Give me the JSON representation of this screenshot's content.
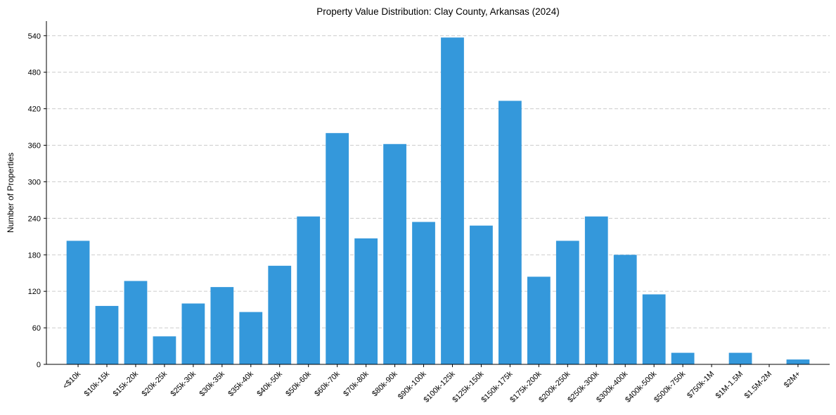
{
  "chart_data": {
    "type": "bar",
    "title": "Property Value Distribution: Clay County, Arkansas (2024)",
    "xlabel": "",
    "ylabel": "Number of Properties",
    "categories": [
      "<$10k",
      "$10k-15k",
      "$15k-20k",
      "$20k-25k",
      "$25k-30k",
      "$30k-35k",
      "$35k-40k",
      "$40k-50k",
      "$50k-60k",
      "$60k-70k",
      "$70k-80k",
      "$80k-90k",
      "$90k-100k",
      "$100k-125k",
      "$125k-150k",
      "$150k-175k",
      "$175k-200k",
      "$200k-250k",
      "$250k-300k",
      "$300k-400k",
      "$400k-500k",
      "$500k-750k",
      "$750k-1M",
      "$1M-1.5M",
      "$1.5M-2M",
      "$2M+"
    ],
    "values": [
      203,
      96,
      137,
      46,
      100,
      127,
      86,
      162,
      243,
      380,
      207,
      362,
      234,
      537,
      228,
      433,
      144,
      203,
      243,
      180,
      115,
      19,
      0,
      19,
      0,
      8
    ],
    "ylim": [
      0,
      564
    ],
    "yticks": [
      0,
      60,
      120,
      180,
      240,
      300,
      360,
      420,
      480,
      540
    ],
    "grid": "y-dashed",
    "color": "#3498db"
  }
}
